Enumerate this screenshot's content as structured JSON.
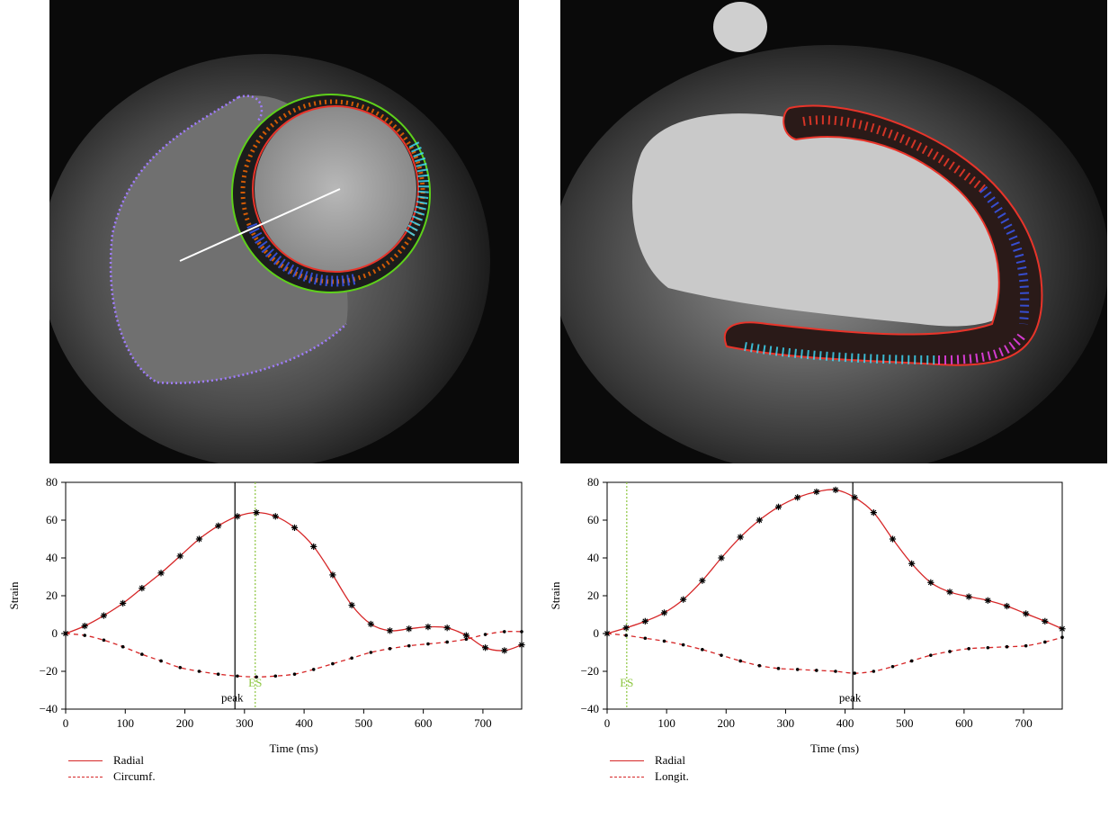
{
  "colors": {
    "radial": "#d62728",
    "marker": "#000000",
    "es_line": "#8dc63f",
    "peak_line": "#000000"
  },
  "images": [
    {
      "name": "short-axis-mri",
      "alt_icon": "cardiac-mri-short-axis-icon"
    },
    {
      "name": "long-axis-mri",
      "alt_icon": "cardiac-mri-long-axis-icon"
    }
  ],
  "chart_data": [
    {
      "type": "line",
      "title": "",
      "xlabel": "Time (ms)",
      "ylabel": "Strain",
      "xlim": [
        0,
        765
      ],
      "ylim": [
        -40,
        80
      ],
      "xticks": [
        0,
        100,
        200,
        300,
        400,
        500,
        600,
        700
      ],
      "yticks": [
        -40,
        -20,
        0,
        20,
        40,
        60,
        80
      ],
      "grid": false,
      "legend_position": "below-left",
      "vlines": [
        {
          "label": "peak",
          "x": 284
        },
        {
          "label": "ES",
          "x": 318
        }
      ],
      "series": [
        {
          "name": "Radial",
          "style": "solid",
          "marker": "asterisk",
          "x": [
            0,
            32,
            64,
            96,
            128,
            160,
            192,
            224,
            256,
            288,
            320,
            352,
            384,
            416,
            448,
            480,
            512,
            544,
            576,
            608,
            640,
            672,
            704,
            736,
            765
          ],
          "y": [
            0,
            4,
            9.5,
            16,
            24,
            32,
            41,
            50,
            57,
            62,
            64,
            62,
            56,
            46,
            31,
            15,
            5,
            1.5,
            2.5,
            3.5,
            3,
            -1,
            -7.5,
            -9,
            -6
          ]
        },
        {
          "name": "Circumf.",
          "style": "dashed",
          "marker": "dot",
          "x": [
            0,
            32,
            64,
            96,
            128,
            160,
            192,
            224,
            256,
            288,
            320,
            352,
            384,
            416,
            448,
            480,
            512,
            544,
            576,
            608,
            640,
            672,
            704,
            736,
            765
          ],
          "y": [
            0,
            -1,
            -3.5,
            -7,
            -11,
            -14.5,
            -18,
            -20,
            -21.5,
            -22.5,
            -23,
            -22.5,
            -21.5,
            -19,
            -16,
            -13,
            -10,
            -8,
            -6.5,
            -5.5,
            -4.5,
            -3,
            -0.5,
            1,
            1
          ]
        }
      ]
    },
    {
      "type": "line",
      "title": "",
      "xlabel": "Time (ms)",
      "ylabel": "Strain",
      "xlim": [
        0,
        765
      ],
      "ylim": [
        -40,
        80
      ],
      "xticks": [
        0,
        100,
        200,
        300,
        400,
        500,
        600,
        700
      ],
      "yticks": [
        -40,
        -20,
        0,
        20,
        40,
        60,
        80
      ],
      "grid": false,
      "legend_position": "below-left",
      "vlines": [
        {
          "label": "peak",
          "x": 413
        },
        {
          "label": "ES",
          "x": 33
        }
      ],
      "series": [
        {
          "name": "Radial",
          "style": "solid",
          "marker": "asterisk",
          "x": [
            0,
            32,
            64,
            96,
            128,
            160,
            192,
            224,
            256,
            288,
            320,
            352,
            384,
            416,
            448,
            480,
            512,
            544,
            576,
            608,
            640,
            672,
            704,
            736,
            765
          ],
          "y": [
            0,
            3,
            6.5,
            11,
            18,
            28,
            40,
            51,
            60,
            67,
            72,
            75,
            76,
            72,
            64,
            50,
            37,
            27,
            22,
            19.5,
            17.5,
            14.5,
            10.5,
            6.5,
            2.5
          ]
        },
        {
          "name": "Longit.",
          "style": "dashed",
          "marker": "dot",
          "x": [
            0,
            32,
            64,
            96,
            128,
            160,
            192,
            224,
            256,
            288,
            320,
            352,
            384,
            416,
            448,
            480,
            512,
            544,
            576,
            608,
            640,
            672,
            704,
            736,
            765
          ],
          "y": [
            0,
            -1,
            -2.5,
            -4,
            -6,
            -8.5,
            -11.5,
            -14.5,
            -17,
            -18.5,
            -19,
            -19.5,
            -20,
            -21,
            -20,
            -17.5,
            -14.5,
            -11.5,
            -9.5,
            -8,
            -7.5,
            -7,
            -6.5,
            -4.5,
            -2
          ]
        }
      ]
    }
  ]
}
